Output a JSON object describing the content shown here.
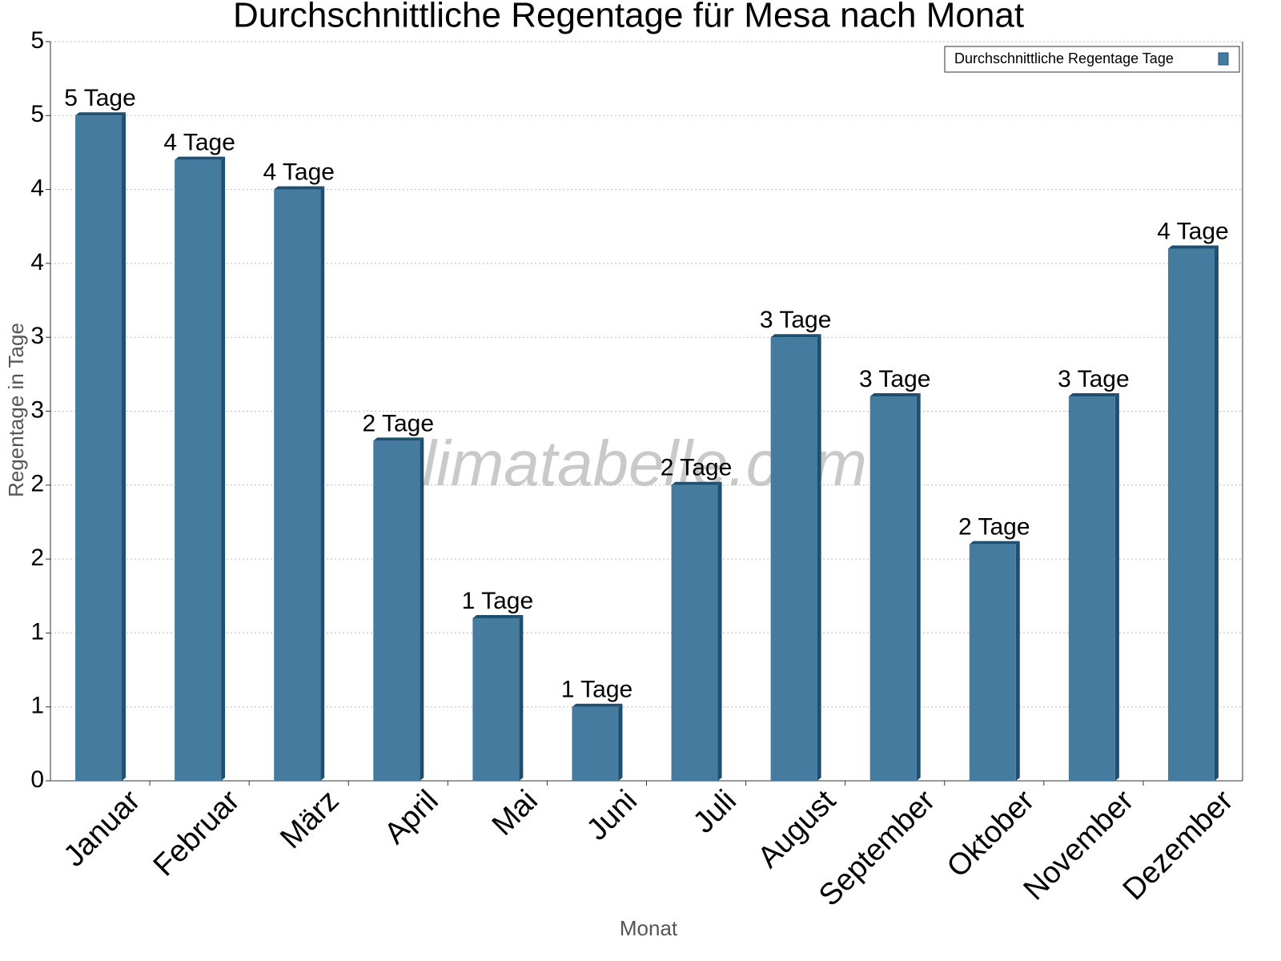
{
  "chart_data": {
    "type": "bar",
    "title": "Durchschnittliche Regentage für Mesa nach Monat",
    "x_label": "Monat",
    "y_label": "Regentage in Tage",
    "watermark": "klimatabelle.com",
    "categories": [
      "Januar",
      "Februar",
      "März",
      "April",
      "Mai",
      "Juni",
      "Juli",
      "August",
      "September",
      "Oktober",
      "November",
      "Dezember"
    ],
    "series": [
      {
        "name": "Durchschnittliche Regentage Tage",
        "color": "#467ba0",
        "values": [
          4.5,
          4.2,
          4.0,
          2.3,
          1.1,
          0.5,
          2.0,
          3.0,
          2.6,
          1.6,
          2.6,
          3.6
        ],
        "value_labels": [
          "5 Tage",
          "4 Tage",
          "4 Tage",
          "2 Tage",
          "1 Tage",
          "1 Tage",
          "2 Tage",
          "3 Tage",
          "3 Tage",
          "2 Tage",
          "3 Tage",
          "4 Tage"
        ]
      }
    ],
    "ylim": [
      0,
      5
    ],
    "yticks": [
      0,
      {
        "value": 0.5,
        "label": "1"
      },
      1,
      {
        "value": 1.5,
        "label": "2"
      },
      2,
      {
        "value": 2.5,
        "label": "3"
      },
      3,
      {
        "value": 3.5,
        "label": "4"
      },
      4,
      {
        "value": 4.5,
        "label": "5"
      },
      5
    ],
    "grid": true,
    "legend": "upper right"
  }
}
